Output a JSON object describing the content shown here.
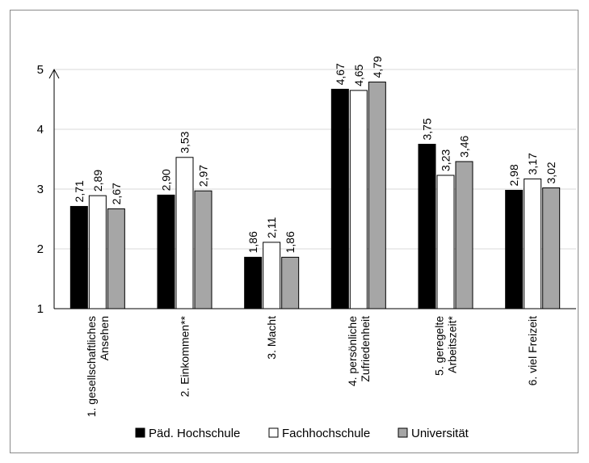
{
  "chart_data": {
    "type": "bar",
    "ylim": [
      1,
      5
    ],
    "yticks": [
      "1",
      "2",
      "3",
      "4",
      "5"
    ],
    "grid": true,
    "legend_position": "bottom",
    "categories": [
      [
        "1. gesellschaftliches",
        "Ansehen"
      ],
      [
        "2. Einkommen**"
      ],
      [
        "3. Macht"
      ],
      [
        "4. persönliche",
        "Zufriedenheit"
      ],
      [
        "5. geregelte",
        "Arbeitszeit*"
      ],
      [
        "6. viel Freizeit"
      ]
    ],
    "series": [
      {
        "name": "Päd. Hochschule",
        "color": "#000000",
        "values": [
          2.71,
          2.9,
          1.86,
          4.67,
          3.75,
          2.98
        ],
        "labels": [
          "2,71",
          "2,90",
          "1,86",
          "4,67",
          "3,75",
          "2,98"
        ]
      },
      {
        "name": "Fachhochschule",
        "color": "#ffffff",
        "values": [
          2.89,
          3.53,
          2.11,
          4.65,
          3.23,
          3.17
        ],
        "labels": [
          "2,89",
          "3,53",
          "2,11",
          "4,65",
          "3,23",
          "3,17"
        ]
      },
      {
        "name": "Universität",
        "color": "#a6a6a6",
        "values": [
          2.67,
          2.97,
          1.86,
          4.79,
          3.46,
          3.02
        ],
        "labels": [
          "2,67",
          "2,97",
          "1,86",
          "4,79",
          "3,46",
          "3,02"
        ]
      }
    ]
  }
}
